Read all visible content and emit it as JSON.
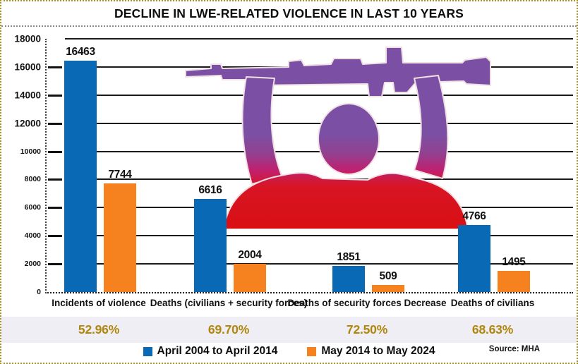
{
  "title": "DECLINE IN LWE-RELATED VIOLENCE IN LAST 10 YEARS",
  "source": "Source: MHA",
  "colors": {
    "series1_blue": "#0a69b4",
    "series2_orange": "#f5821f",
    "percent_text": "#b1870b",
    "percent_band_bg": "#efeef4",
    "frame_border": "#a8902a",
    "gridline": "#1a1a1a"
  },
  "legend": {
    "items": [
      {
        "label": "April 2004 to April 2014",
        "color": "#0a69b4"
      },
      {
        "label": "May 2014 to May 2024",
        "color": "#f5821f"
      }
    ]
  },
  "figure": {
    "description": "militant silhouette holding rifle overhead, purple-to-red painted illustration",
    "top_color": "#7b50a4",
    "bottom_color": "#d90f12"
  },
  "chart_data": {
    "type": "bar",
    "title": "DECLINE IN LWE-RELATED VIOLENCE IN LAST 10 YEARS",
    "categories": [
      "Incidents of violence",
      "Deaths (civilians + security forces)",
      "Deaths of security forces Decrease",
      "Deaths of civilians"
    ],
    "series": [
      {
        "name": "April 2004 to April 2014",
        "color": "#0a69b4",
        "values": [
          16463,
          6616,
          1851,
          4766
        ]
      },
      {
        "name": "May 2014 to May 2024",
        "color": "#f5821f",
        "values": [
          7744,
          2004,
          509,
          1495
        ]
      }
    ],
    "decline_percent": [
      "52.96%",
      "69.70%",
      "72.50%",
      "68.63%"
    ],
    "ylim": [
      0,
      18000
    ],
    "yticks": [
      18000,
      16000,
      14000,
      12000,
      10000,
      8000,
      6000,
      4000,
      2000,
      0
    ],
    "grid": true,
    "legend_position": "bottom",
    "source": "Source: MHA"
  }
}
